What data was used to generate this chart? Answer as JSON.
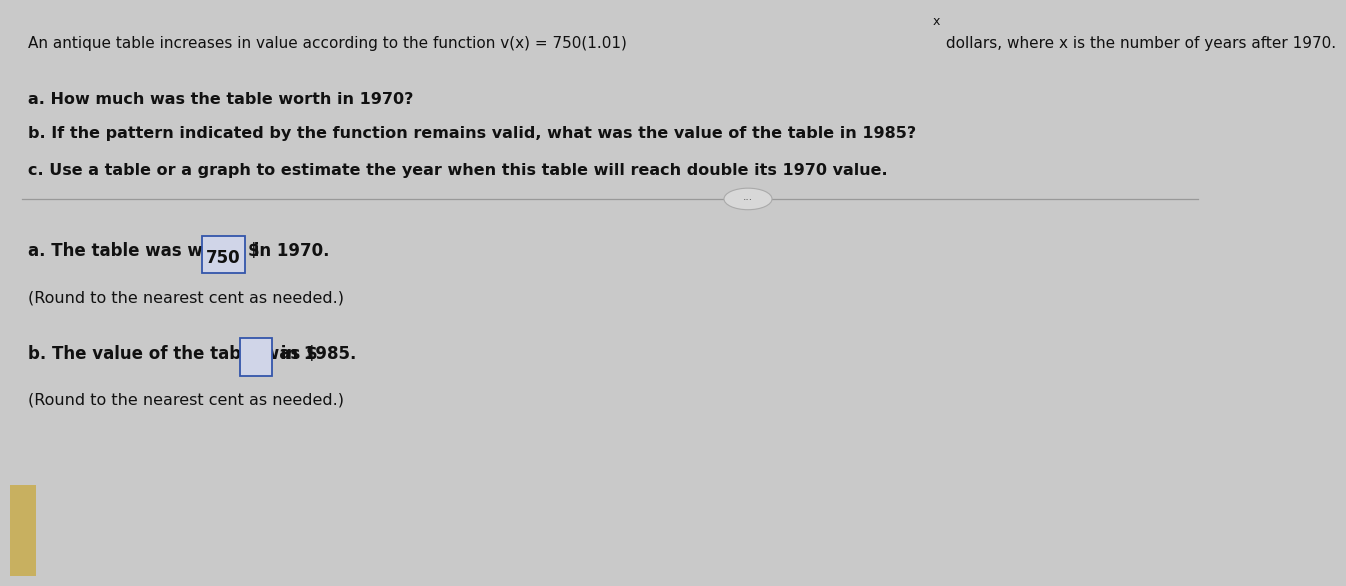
{
  "bg_color": "#c9c9c9",
  "top_bg": "#d5d5d5",
  "bottom_bg": "#cbcbcb",
  "text_color": "#111111",
  "box_edge_color": "#3355aa",
  "box_face_color": "#dde0f0",
  "highlight_750_bg": "#d0d5e8",
  "divider_color": "#999999",
  "dots_bg": "#d8d8d8",
  "dots_edge": "#aaaaaa",
  "yellow_rect_color": "#c8b060",
  "title": "An antique table increases in value according to the function v(x) = 750(1.01)",
  "title_super": "x",
  "title_end": " dollars, where x is the number of years after 1970.",
  "q_a": "a. How much was the table worth in 1970?",
  "q_b": "b. If the pattern indicated by the function remains valid, what was the value of the table in 1985?",
  "q_c": "c. Use a table or a graph to estimate the year when this table will reach double its 1970 value.",
  "ans_a1": "a. The table was worth $ ",
  "ans_a_val": "750",
  "ans_a2": " in 1970.",
  "ans_a_note": "(Round to the nearest cent as needed.)",
  "ans_b1": "b. The value of the table was $",
  "ans_b2": " in 1985.",
  "ans_b_note": "(Round to the nearest cent as needed.)",
  "font_size_title": 11.0,
  "font_size_q": 11.5,
  "font_size_ans": 12.0,
  "font_size_note": 11.5
}
